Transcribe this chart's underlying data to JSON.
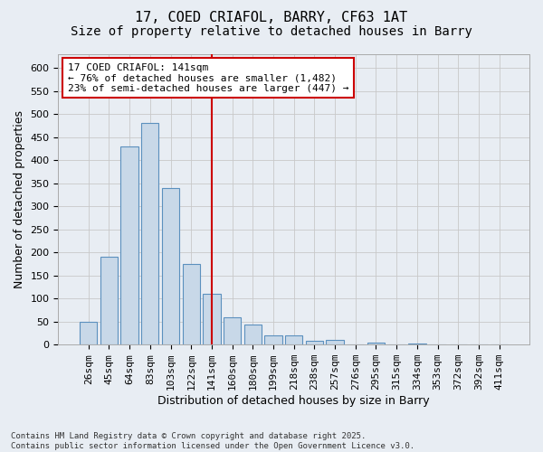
{
  "title_line1": "17, COED CRIAFOL, BARRY, CF63 1AT",
  "title_line2": "Size of property relative to detached houses in Barry",
  "xlabel": "Distribution of detached houses by size in Barry",
  "ylabel": "Number of detached properties",
  "categories": [
    "26sqm",
    "45sqm",
    "64sqm",
    "83sqm",
    "103sqm",
    "122sqm",
    "141sqm",
    "160sqm",
    "180sqm",
    "199sqm",
    "218sqm",
    "238sqm",
    "257sqm",
    "276sqm",
    "295sqm",
    "315sqm",
    "334sqm",
    "353sqm",
    "372sqm",
    "392sqm",
    "411sqm"
  ],
  "values": [
    50,
    190,
    430,
    480,
    340,
    175,
    110,
    60,
    43,
    20,
    20,
    9,
    11,
    0,
    5,
    0,
    2,
    0,
    0,
    0,
    0
  ],
  "bar_color": "#c8d8e8",
  "bar_edge_color": "#5b90be",
  "vline_index": 6,
  "vline_color": "#cc0000",
  "annotation_text": "17 COED CRIAFOL: 141sqm\n← 76% of detached houses are smaller (1,482)\n23% of semi-detached houses are larger (447) →",
  "ann_facecolor": "#ffffff",
  "ann_edgecolor": "#cc0000",
  "ylim": [
    0,
    630
  ],
  "yticks": [
    0,
    50,
    100,
    150,
    200,
    250,
    300,
    350,
    400,
    450,
    500,
    550,
    600
  ],
  "grid_color": "#c8c8c8",
  "bg_color": "#e8edf3",
  "footer": "Contains HM Land Registry data © Crown copyright and database right 2025.\nContains public sector information licensed under the Open Government Licence v3.0.",
  "title_fs": 11,
  "xlabel_fs": 9,
  "ylabel_fs": 9,
  "tick_fs": 8,
  "ann_fs": 8
}
